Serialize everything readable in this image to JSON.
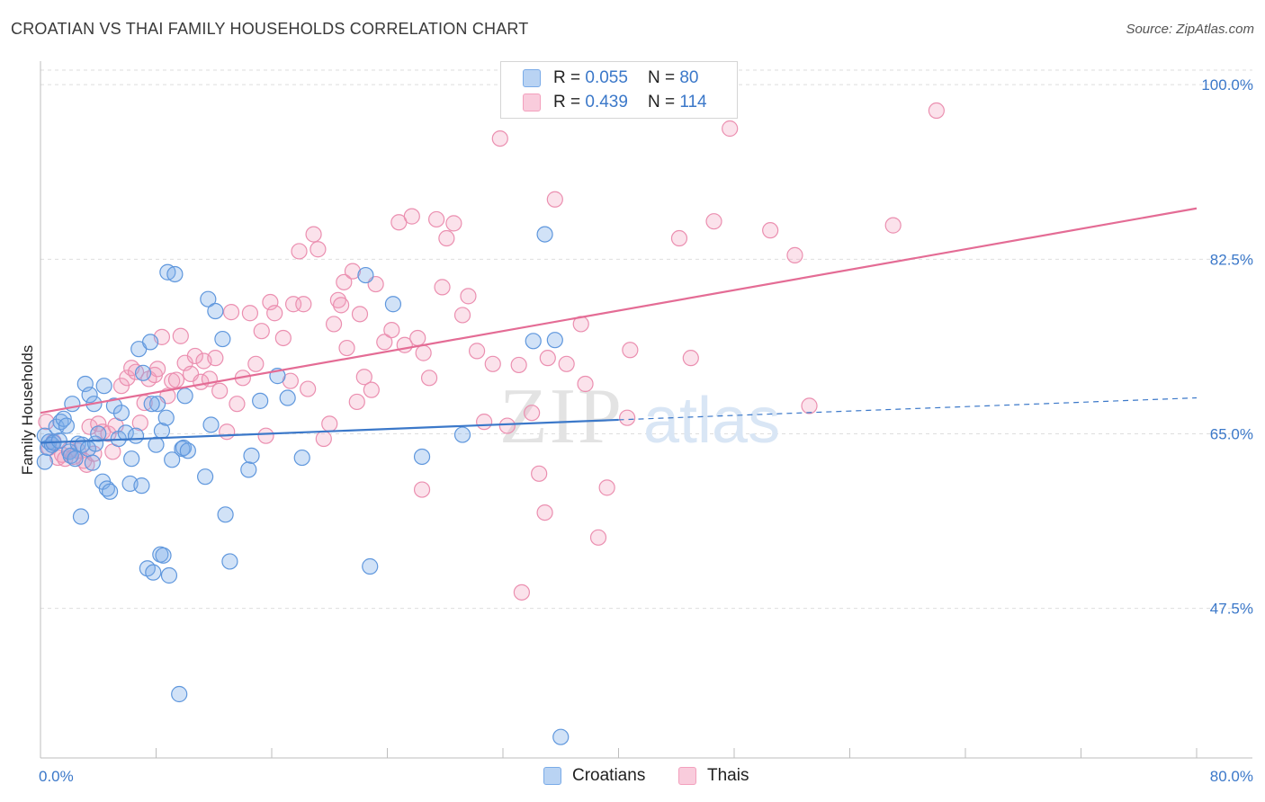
{
  "title": "CROATIAN VS THAI FAMILY HOUSEHOLDS CORRELATION CHART",
  "source": "Source: ZipAtlas.com",
  "watermark": {
    "zip": "ZIP",
    "atlas": "atlas"
  },
  "legend": {
    "r_label": "R =",
    "n_label": "N =",
    "rows": [
      {
        "r": "0.055",
        "n": "80",
        "color": "#7aabe8"
      },
      {
        "r": "0.439",
        "n": "114",
        "color": "#f3a0bd"
      }
    ]
  },
  "colors": {
    "blue": "#3b78c9",
    "blue_fill": "#aecbf0",
    "pink": "#e46c95",
    "pink_fill": "#f7c4d6",
    "grid": "#dcdcdc"
  },
  "chart_data": {
    "type": "scatter",
    "title": "CROATIAN VS THAI FAMILY HOUSEHOLDS CORRELATION CHART",
    "xlabel": "",
    "ylabel": "Family Households",
    "xlim": [
      0,
      80
    ],
    "ylim": [
      32.5,
      102
    ],
    "y_ticks": [
      47.5,
      65.0,
      82.5,
      100.0
    ],
    "y_tick_labels": [
      "47.5%",
      "65.0%",
      "82.5%",
      "100.0%"
    ],
    "x_tick_labels": [
      "0.0%",
      "80.0%"
    ],
    "grid": true,
    "legend_position": "top-center",
    "series": [
      {
        "name": "Croatians",
        "color": "#3b78c9",
        "trend": {
          "x": [
            0,
            40
          ],
          "y": [
            64.1,
            66.4
          ],
          "dashed_extension": {
            "x": [
              40,
              80
            ],
            "y": [
              66.4,
              68.6
            ]
          }
        },
        "points": [
          [
            0.3,
            64.8
          ],
          [
            0.3,
            62.2
          ],
          [
            0.5,
            63.6
          ],
          [
            0.6,
            64.2
          ],
          [
            0.8,
            63.9
          ],
          [
            0.9,
            64.1
          ],
          [
            1.1,
            65.7
          ],
          [
            1.3,
            64.3
          ],
          [
            1.4,
            66.2
          ],
          [
            1.6,
            66.5
          ],
          [
            1.8,
            65.8
          ],
          [
            2.0,
            63.2
          ],
          [
            2.1,
            62.8
          ],
          [
            2.2,
            68.0
          ],
          [
            2.4,
            62.5
          ],
          [
            2.6,
            64.0
          ],
          [
            2.8,
            56.7
          ],
          [
            2.9,
            63.9
          ],
          [
            3.1,
            70.0
          ],
          [
            3.3,
            63.5
          ],
          [
            3.4,
            68.9
          ],
          [
            3.6,
            62.1
          ],
          [
            3.7,
            68.0
          ],
          [
            3.8,
            64.0
          ],
          [
            4.0,
            65.0
          ],
          [
            4.3,
            60.2
          ],
          [
            4.4,
            69.8
          ],
          [
            4.6,
            59.5
          ],
          [
            4.8,
            59.2
          ],
          [
            5.1,
            67.8
          ],
          [
            5.4,
            64.5
          ],
          [
            5.6,
            67.1
          ],
          [
            5.9,
            65.1
          ],
          [
            6.2,
            60.0
          ],
          [
            6.3,
            62.5
          ],
          [
            6.6,
            64.8
          ],
          [
            6.8,
            73.5
          ],
          [
            7.0,
            59.8
          ],
          [
            7.1,
            71.1
          ],
          [
            7.4,
            51.5
          ],
          [
            7.6,
            74.2
          ],
          [
            7.8,
            51.1
          ],
          [
            8.0,
            63.9
          ],
          [
            8.1,
            68.0
          ],
          [
            8.3,
            52.9
          ],
          [
            8.4,
            65.3
          ],
          [
            8.5,
            52.8
          ],
          [
            8.7,
            66.6
          ],
          [
            8.8,
            81.2
          ],
          [
            8.9,
            50.8
          ],
          [
            9.1,
            62.4
          ],
          [
            9.3,
            81.0
          ],
          [
            9.6,
            38.9
          ],
          [
            9.8,
            63.5
          ],
          [
            9.9,
            63.6
          ],
          [
            10.0,
            68.8
          ],
          [
            10.2,
            63.3
          ],
          [
            11.4,
            60.7
          ],
          [
            11.6,
            78.5
          ],
          [
            11.8,
            65.9
          ],
          [
            12.1,
            77.3
          ],
          [
            12.6,
            74.5
          ],
          [
            12.8,
            56.9
          ],
          [
            13.1,
            52.2
          ],
          [
            14.4,
            61.4
          ],
          [
            14.6,
            62.8
          ],
          [
            15.2,
            68.3
          ],
          [
            16.4,
            70.8
          ],
          [
            17.1,
            68.6
          ],
          [
            18.1,
            62.6
          ],
          [
            22.5,
            80.9
          ],
          [
            22.8,
            51.7
          ],
          [
            24.4,
            78.0
          ],
          [
            26.4,
            62.7
          ],
          [
            29.2,
            64.9
          ],
          [
            34.1,
            74.3
          ],
          [
            34.9,
            85.0
          ],
          [
            35.6,
            74.4
          ],
          [
            36.0,
            34.6
          ],
          [
            7.7,
            68.0
          ]
        ]
      },
      {
        "name": "Thais",
        "color": "#e46c95",
        "trend": {
          "x": [
            0,
            80
          ],
          "y": [
            67.1,
            87.6
          ]
        },
        "points": [
          [
            0.4,
            66.2
          ],
          [
            0.6,
            63.6
          ],
          [
            0.9,
            64.2
          ],
          [
            1.2,
            62.6
          ],
          [
            1.5,
            62.9
          ],
          [
            1.7,
            62.5
          ],
          [
            2.0,
            63.4
          ],
          [
            2.3,
            62.7
          ],
          [
            2.6,
            63.3
          ],
          [
            3.0,
            62.3
          ],
          [
            3.2,
            61.9
          ],
          [
            3.4,
            65.7
          ],
          [
            3.7,
            63.0
          ],
          [
            4.0,
            66.0
          ],
          [
            4.3,
            65.2
          ],
          [
            4.7,
            65.0
          ],
          [
            5.0,
            63.2
          ],
          [
            5.2,
            65.8
          ],
          [
            5.6,
            69.8
          ],
          [
            6.0,
            70.6
          ],
          [
            6.3,
            71.6
          ],
          [
            6.6,
            71.2
          ],
          [
            6.9,
            66.1
          ],
          [
            7.2,
            68.1
          ],
          [
            7.5,
            70.5
          ],
          [
            7.9,
            70.9
          ],
          [
            8.1,
            71.5
          ],
          [
            8.4,
            74.7
          ],
          [
            8.8,
            68.8
          ],
          [
            9.1,
            70.3
          ],
          [
            9.4,
            70.4
          ],
          [
            9.7,
            74.8
          ],
          [
            10.0,
            72.1
          ],
          [
            10.4,
            71.0
          ],
          [
            10.7,
            72.8
          ],
          [
            11.1,
            70.2
          ],
          [
            11.3,
            72.3
          ],
          [
            11.7,
            70.5
          ],
          [
            12.1,
            72.6
          ],
          [
            12.4,
            69.3
          ],
          [
            12.9,
            65.2
          ],
          [
            13.2,
            77.2
          ],
          [
            13.6,
            68.0
          ],
          [
            14.0,
            70.6
          ],
          [
            14.5,
            77.1
          ],
          [
            14.9,
            72.0
          ],
          [
            15.3,
            75.3
          ],
          [
            15.6,
            64.8
          ],
          [
            15.9,
            78.2
          ],
          [
            16.2,
            77.1
          ],
          [
            16.8,
            74.6
          ],
          [
            17.3,
            70.3
          ],
          [
            17.5,
            78.0
          ],
          [
            17.9,
            83.3
          ],
          [
            18.2,
            78.0
          ],
          [
            18.5,
            69.5
          ],
          [
            18.9,
            85.0
          ],
          [
            19.2,
            83.5
          ],
          [
            19.6,
            64.5
          ],
          [
            20.0,
            66.0
          ],
          [
            20.3,
            76.0
          ],
          [
            20.6,
            78.4
          ],
          [
            20.8,
            77.9
          ],
          [
            21.0,
            80.2
          ],
          [
            21.2,
            73.6
          ],
          [
            21.6,
            81.3
          ],
          [
            21.9,
            68.2
          ],
          [
            22.1,
            77.0
          ],
          [
            22.4,
            70.7
          ],
          [
            22.9,
            69.4
          ],
          [
            23.2,
            80.0
          ],
          [
            23.8,
            74.2
          ],
          [
            24.3,
            75.4
          ],
          [
            24.8,
            86.2
          ],
          [
            25.2,
            73.9
          ],
          [
            25.7,
            86.8
          ],
          [
            26.1,
            74.6
          ],
          [
            26.5,
            73.1
          ],
          [
            26.9,
            70.6
          ],
          [
            27.4,
            86.5
          ],
          [
            27.8,
            79.7
          ],
          [
            28.1,
            84.6
          ],
          [
            28.6,
            86.1
          ],
          [
            29.2,
            76.9
          ],
          [
            29.6,
            78.8
          ],
          [
            30.2,
            73.3
          ],
          [
            30.7,
            66.2
          ],
          [
            31.3,
            72.0
          ],
          [
            31.8,
            94.6
          ],
          [
            32.3,
            65.8
          ],
          [
            33.1,
            71.9
          ],
          [
            34.0,
            67.1
          ],
          [
            34.5,
            61.0
          ],
          [
            35.1,
            72.6
          ],
          [
            35.6,
            88.5
          ],
          [
            36.4,
            72.0
          ],
          [
            37.4,
            76.0
          ],
          [
            37.7,
            70.0
          ],
          [
            38.6,
            54.6
          ],
          [
            40.8,
            73.4
          ],
          [
            44.2,
            84.6
          ],
          [
            45.0,
            72.6
          ],
          [
            46.6,
            86.3
          ],
          [
            47.7,
            95.6
          ],
          [
            50.5,
            85.4
          ],
          [
            52.2,
            82.9
          ],
          [
            53.2,
            67.8
          ],
          [
            59.0,
            85.9
          ],
          [
            62.0,
            97.4
          ],
          [
            40.6,
            66.6
          ],
          [
            39.2,
            59.6
          ],
          [
            34.9,
            57.1
          ],
          [
            26.4,
            59.4
          ],
          [
            33.3,
            49.1
          ]
        ]
      }
    ]
  }
}
